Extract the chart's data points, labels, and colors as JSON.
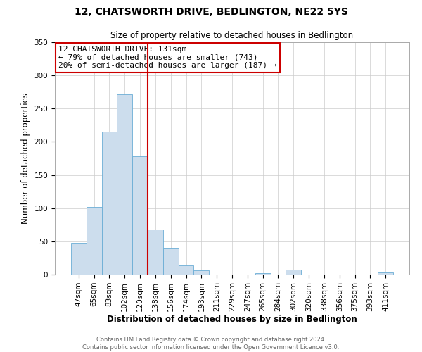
{
  "title": "12, CHATSWORTH DRIVE, BEDLINGTON, NE22 5YS",
  "subtitle": "Size of property relative to detached houses in Bedlington",
  "xlabel": "Distribution of detached houses by size in Bedlington",
  "ylabel": "Number of detached properties",
  "bar_labels": [
    "47sqm",
    "65sqm",
    "83sqm",
    "102sqm",
    "120sqm",
    "138sqm",
    "156sqm",
    "174sqm",
    "193sqm",
    "211sqm",
    "229sqm",
    "247sqm",
    "265sqm",
    "284sqm",
    "302sqm",
    "320sqm",
    "338sqm",
    "356sqm",
    "375sqm",
    "393sqm",
    "411sqm"
  ],
  "bar_values": [
    48,
    102,
    215,
    272,
    178,
    68,
    40,
    14,
    6,
    0,
    0,
    0,
    2,
    0,
    7,
    0,
    0,
    0,
    0,
    0,
    3
  ],
  "bar_color": "#ccdded",
  "bar_edgecolor": "#6aadd5",
  "vline_color": "#cc0000",
  "vline_position": 4.5,
  "ylim": [
    0,
    350
  ],
  "yticks": [
    0,
    50,
    100,
    150,
    200,
    250,
    300,
    350
  ],
  "annotation_title": "12 CHATSWORTH DRIVE: 131sqm",
  "annotation_line1": "← 79% of detached houses are smaller (743)",
  "annotation_line2": "20% of semi-detached houses are larger (187) →",
  "annotation_box_color": "#cc0000",
  "footnote1": "Contains HM Land Registry data © Crown copyright and database right 2024.",
  "footnote2": "Contains public sector information licensed under the Open Government Licence v3.0.",
  "background_color": "#ffffff",
  "grid_color": "#cccccc"
}
